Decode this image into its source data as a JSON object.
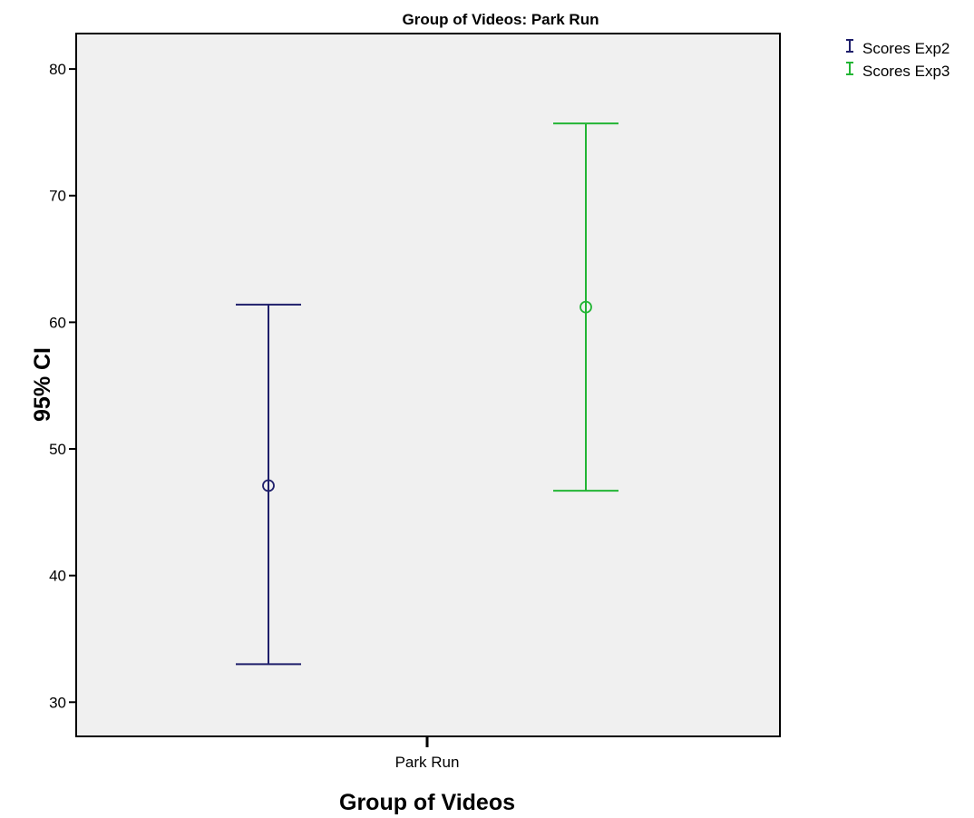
{
  "chart_data": {
    "type": "errorbar",
    "title": "Group of Videos: Park Run",
    "xlabel": "Group of Videos",
    "ylabel": "95% CI",
    "categories": [
      "Park Run"
    ],
    "ylim": [
      27.3,
      82.8
    ],
    "yticks": [
      30,
      40,
      50,
      60,
      70,
      80
    ],
    "grid": false,
    "legend_position": "top-right",
    "series": [
      {
        "name": "Scores Exp2",
        "color": "#1f1f6b",
        "mean": 47.1,
        "lower": 33.0,
        "upper": 61.4
      },
      {
        "name": "Scores Exp3",
        "color": "#22b534",
        "mean": 61.2,
        "lower": 46.7,
        "upper": 75.7
      }
    ]
  }
}
